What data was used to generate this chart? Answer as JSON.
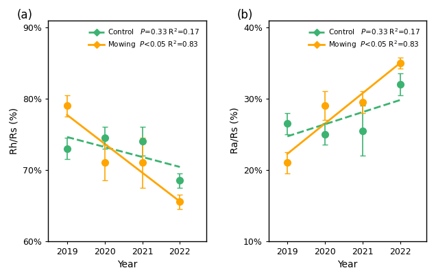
{
  "years": [
    2019,
    2020,
    2021,
    2022
  ],
  "panel_a": {
    "ylabel": "Rh/Rs (%)",
    "ylim": [
      60,
      91
    ],
    "yticks": [
      60,
      70,
      80,
      90
    ],
    "yticklabels": [
      "60%",
      "70%",
      "80%",
      "90%"
    ],
    "control": {
      "y": [
        73.0,
        74.5,
        74.0,
        68.5
      ],
      "yerr": [
        1.5,
        1.5,
        2.0,
        1.0
      ],
      "label": "Control   $P$=0.33 R$^{2}$=0.17"
    },
    "mowing": {
      "y": [
        79.0,
        71.0,
        71.0,
        65.5
      ],
      "yerr": [
        1.5,
        2.5,
        3.5,
        1.0
      ],
      "label": "Mowing  $P$<0.05 R$^{2}$=0.83"
    }
  },
  "panel_b": {
    "ylabel": "Ra/Rs (%)",
    "ylim": [
      10,
      41
    ],
    "yticks": [
      10,
      20,
      30,
      40
    ],
    "yticklabels": [
      "10%",
      "20%",
      "30%",
      "40%"
    ],
    "control": {
      "y": [
        26.5,
        25.0,
        25.5,
        32.0
      ],
      "yerr": [
        1.5,
        1.5,
        3.5,
        1.5
      ],
      "label": "Control   $P$=0.33 R$^{2}$=0.17"
    },
    "mowing": {
      "y": [
        21.0,
        29.0,
        29.5,
        35.0
      ],
      "yerr": [
        1.5,
        2.0,
        1.5,
        0.8
      ],
      "label": "Mowing  $P$<0.05 R$^{2}$=0.83"
    }
  },
  "control_color": "#3CB371",
  "mowing_color": "#FFA500",
  "marker_size": 7,
  "linewidth": 2.0,
  "capsize": 3,
  "xlabel": "Year",
  "background_color": "#ffffff",
  "ab_labels": [
    "(a)",
    "(b)"
  ]
}
